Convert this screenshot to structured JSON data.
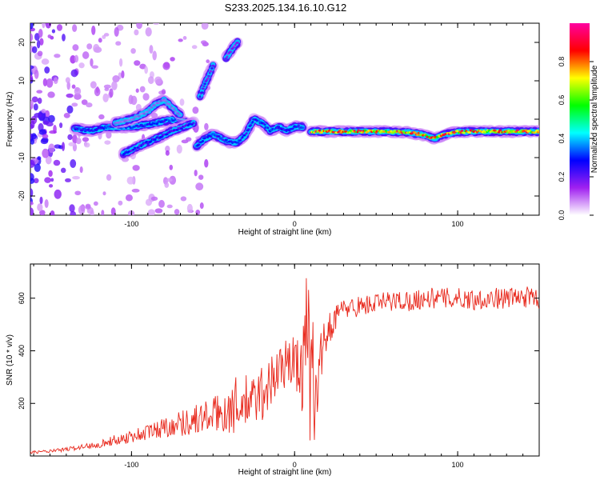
{
  "title": "S233.2025.134.16.10.G12",
  "chart_data": [
    {
      "type": "heatmap",
      "name": "spectrogram",
      "xlabel": "Height of straight line (km)",
      "ylabel": "Frequency (Hz)",
      "xlim": [
        -162,
        150
      ],
      "ylim": [
        -25,
        25
      ],
      "xticks": [
        -100,
        0,
        100
      ],
      "yticks": [
        -20,
        -10,
        0,
        10,
        20
      ],
      "colorbar": {
        "label": "Normalized spectral amplitude",
        "range": [
          0,
          1
        ],
        "ticks": [
          "0.0",
          "0.2",
          "0.4",
          "0.6",
          "0.8"
        ],
        "colors": [
          "#ffffff",
          "#a020f0",
          "#0000ff",
          "#00ffff",
          "#00ff00",
          "#ffff00",
          "#ff0000",
          "#ff00a0"
        ]
      },
      "traces": [
        {
          "x": [
            -135,
            -125,
            -115,
            -108,
            -100,
            -92,
            -85,
            -80,
            -72,
            -66
          ],
          "y": [
            -2.5,
            -3,
            -2,
            -2,
            -2,
            -1.5,
            -1,
            -0.5,
            0,
            -1
          ],
          "amplitude": 0.35
        },
        {
          "x": [
            -105,
            -98,
            -90,
            -82,
            -75,
            -68,
            -62
          ],
          "y": [
            -9,
            -7.5,
            -6,
            -4.5,
            -3,
            -2,
            -1
          ],
          "amplitude": 0.3
        },
        {
          "x": [
            -110,
            -100,
            -90,
            -85,
            -80,
            -75,
            -70
          ],
          "y": [
            -1,
            0,
            2,
            4,
            5,
            3,
            1
          ],
          "amplitude": 0.15
        },
        {
          "x": [
            -60,
            -55,
            -50,
            -45,
            -40,
            -35,
            -30,
            -25,
            -20,
            -15,
            -10,
            -5,
            0,
            5
          ],
          "y": [
            -7,
            -5,
            -4,
            -5,
            -6,
            -6,
            -4,
            0,
            -1,
            -3,
            -2,
            -3,
            -2,
            -2
          ],
          "amplitude": 0.35
        },
        {
          "x": [
            -58,
            -55,
            -52,
            -50
          ],
          "y": [
            6,
            9,
            12,
            14
          ],
          "amplitude": 0.25
        },
        {
          "x": [
            -42,
            -38,
            -35
          ],
          "y": [
            16,
            18.5,
            20
          ],
          "amplitude": 0.2
        },
        {
          "x": [
            10,
            20,
            30,
            40,
            50,
            60,
            70,
            80,
            86,
            92,
            100,
            110,
            120,
            130,
            140,
            150
          ],
          "y": [
            -3.2,
            -3.2,
            -3.2,
            -3.2,
            -3.2,
            -3.3,
            -3.4,
            -4.2,
            -5,
            -4,
            -3.3,
            -3.2,
            -3.2,
            -3.2,
            -3.2,
            -3.2
          ],
          "amplitude": 0.95
        }
      ]
    },
    {
      "type": "line",
      "name": "snr",
      "xlabel": "Height of straight line (km)",
      "ylabel": "SNR (10 * v/v)",
      "xlim": [
        -162,
        150
      ],
      "ylim": [
        0,
        730
      ],
      "xticks": [
        -100,
        0,
        100
      ],
      "yticks": [
        200,
        400,
        600
      ],
      "color": "#e8281c",
      "x": [
        -160,
        -150,
        -140,
        -130,
        -120,
        -110,
        -100,
        -90,
        -80,
        -70,
        -60,
        -50,
        -40,
        -35,
        -30,
        -25,
        -20,
        -15,
        -10,
        -5,
        0,
        5,
        8,
        12,
        15,
        20,
        25,
        30,
        40,
        50,
        60,
        70,
        80,
        90,
        100,
        110,
        120,
        130,
        140,
        150
      ],
      "y": [
        15,
        18,
        25,
        35,
        45,
        60,
        75,
        90,
        110,
        125,
        140,
        155,
        175,
        190,
        200,
        210,
        240,
        280,
        320,
        360,
        350,
        330,
        700,
        200,
        350,
        470,
        530,
        560,
        570,
        580,
        590,
        590,
        600,
        600,
        600,
        595,
        600,
        600,
        605,
        600
      ],
      "noise": [
        5,
        6,
        8,
        10,
        14,
        20,
        26,
        32,
        40,
        50,
        60,
        70,
        90,
        120,
        110,
        100,
        110,
        110,
        100,
        90,
        110,
        180,
        0,
        200,
        100,
        70,
        50,
        40,
        40,
        40,
        40,
        40,
        40,
        40,
        40,
        40,
        40,
        40,
        40,
        40
      ]
    }
  ]
}
